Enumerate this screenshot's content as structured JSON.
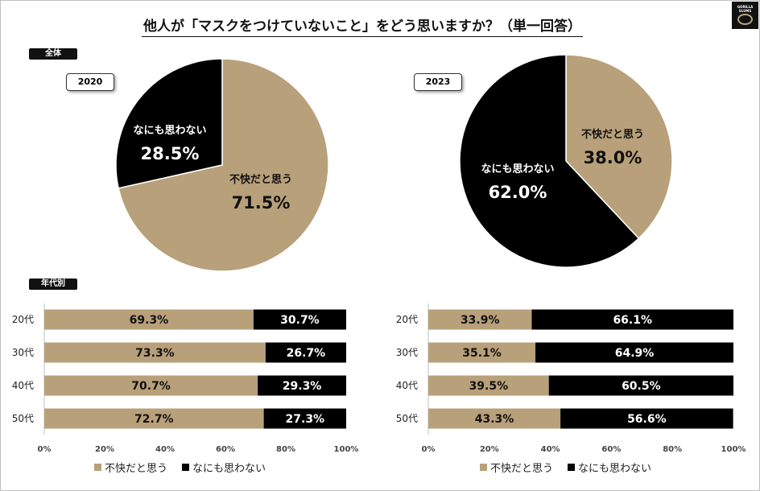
{
  "title": "他人が「マスクをつけていないこと」をどう思いますか？（単一回答）",
  "logo": {
    "text": "GORILLA SLUMS"
  },
  "section_all": "全体",
  "section_age": "年代別",
  "colors": {
    "uncomfortable": "#b8a07a",
    "nothing": "#000000"
  },
  "legend": {
    "uncomfortable": "不快だと思う",
    "nothing": "なにも思わない"
  },
  "chart_data": [
    {
      "type": "pie",
      "title": "2020",
      "slices": [
        {
          "label": "不快だと思う",
          "value": 71.5,
          "display": "71.5%"
        },
        {
          "label": "なにも思わない",
          "value": 28.5,
          "display": "28.5%"
        }
      ]
    },
    {
      "type": "pie",
      "title": "2023",
      "slices": [
        {
          "label": "不快だと思う",
          "value": 38.0,
          "display": "38.0%"
        },
        {
          "label": "なにも思わない",
          "value": 62.0,
          "display": "62.0%"
        }
      ]
    },
    {
      "type": "bar",
      "orientation": "horizontal-stacked",
      "year": "2020",
      "categories": [
        "20代",
        "30代",
        "40代",
        "50代"
      ],
      "series": [
        {
          "name": "不快だと思う",
          "values": [
            69.3,
            73.3,
            70.7,
            72.7
          ],
          "labels": [
            "69.3%",
            "73.3%",
            "70.7%",
            "72.7%"
          ]
        },
        {
          "name": "なにも思わない",
          "values": [
            30.7,
            26.7,
            29.3,
            27.3
          ],
          "labels": [
            "30.7%",
            "26.7%",
            "29.3%",
            "27.3%"
          ]
        }
      ],
      "xlim": [
        0,
        100
      ],
      "xticks": [
        "0%",
        "20%",
        "40%",
        "60%",
        "80%",
        "100%"
      ]
    },
    {
      "type": "bar",
      "orientation": "horizontal-stacked",
      "year": "2023",
      "categories": [
        "20代",
        "30代",
        "40代",
        "50代"
      ],
      "series": [
        {
          "name": "不快だと思う",
          "values": [
            33.9,
            35.1,
            39.5,
            43.3
          ],
          "labels": [
            "33.9%",
            "35.1%",
            "39.5%",
            "43.3%"
          ]
        },
        {
          "name": "なにも思わない",
          "values": [
            66.1,
            64.9,
            60.5,
            56.6
          ],
          "labels": [
            "66.1%",
            "64.9%",
            "60.5%",
            "56.6%"
          ]
        }
      ],
      "xlim": [
        0,
        100
      ],
      "xticks": [
        "0%",
        "20%",
        "40%",
        "60%",
        "80%",
        "100%"
      ]
    }
  ]
}
